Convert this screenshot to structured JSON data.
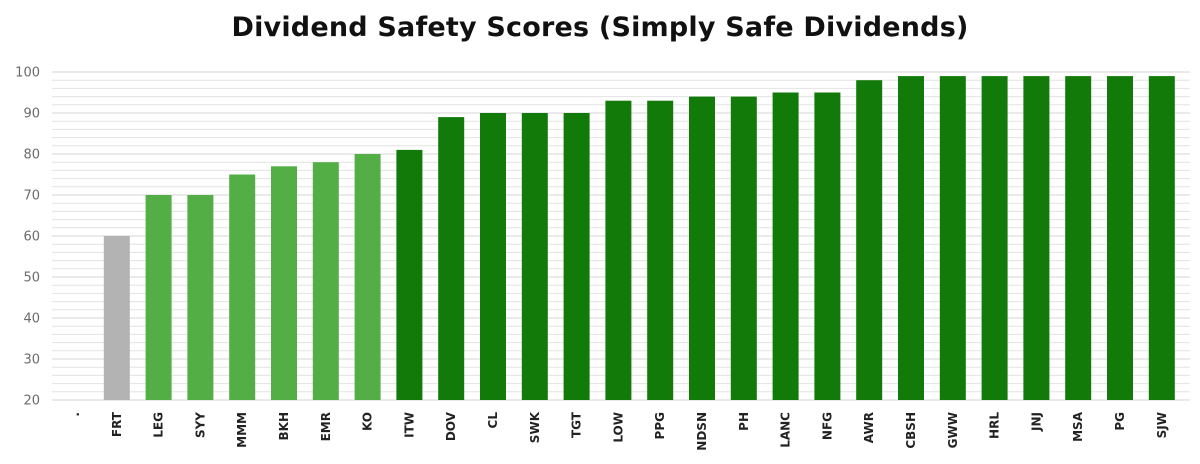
{
  "chart_data": {
    "type": "bar",
    "title": "Dividend Safety Scores (Simply Safe Dividends)",
    "xlabel": "",
    "ylabel": "",
    "ylim": [
      20,
      100
    ],
    "yticks": [
      20,
      30,
      40,
      50,
      60,
      70,
      80,
      90,
      100
    ],
    "grid": true,
    "categories": [
      ".",
      "FRT",
      "LEG",
      "SYY",
      "MMM",
      "BKH",
      "EMR",
      "KO",
      "ITW",
      "DOV",
      "CL",
      "SWK",
      "TGT",
      "LOW",
      "PPG",
      "NDSN",
      "PH",
      "LANC",
      "NFG",
      "AWR",
      "CBSH",
      "GWW",
      "HRL",
      "JNJ",
      "MSA",
      "PG",
      "SJW"
    ],
    "values": [
      null,
      60,
      70,
      70,
      75,
      77,
      78,
      80,
      81,
      89,
      90,
      90,
      90,
      93,
      93,
      94,
      94,
      95,
      95,
      98,
      99,
      99,
      99,
      99,
      99,
      99,
      99
    ],
    "colors": {
      "grey": "#b3b3b3",
      "light_green": "#52ae45",
      "dark_green": "#127a08",
      "gridline": "#e3e3e3"
    },
    "bar_color_groups": [
      "none",
      "grey",
      "light_green",
      "light_green",
      "light_green",
      "light_green",
      "light_green",
      "light_green",
      "dark_green",
      "dark_green",
      "dark_green",
      "dark_green",
      "dark_green",
      "dark_green",
      "dark_green",
      "dark_green",
      "dark_green",
      "dark_green",
      "dark_green",
      "dark_green",
      "dark_green",
      "dark_green",
      "dark_green",
      "dark_green",
      "dark_green",
      "dark_green",
      "dark_green"
    ]
  }
}
